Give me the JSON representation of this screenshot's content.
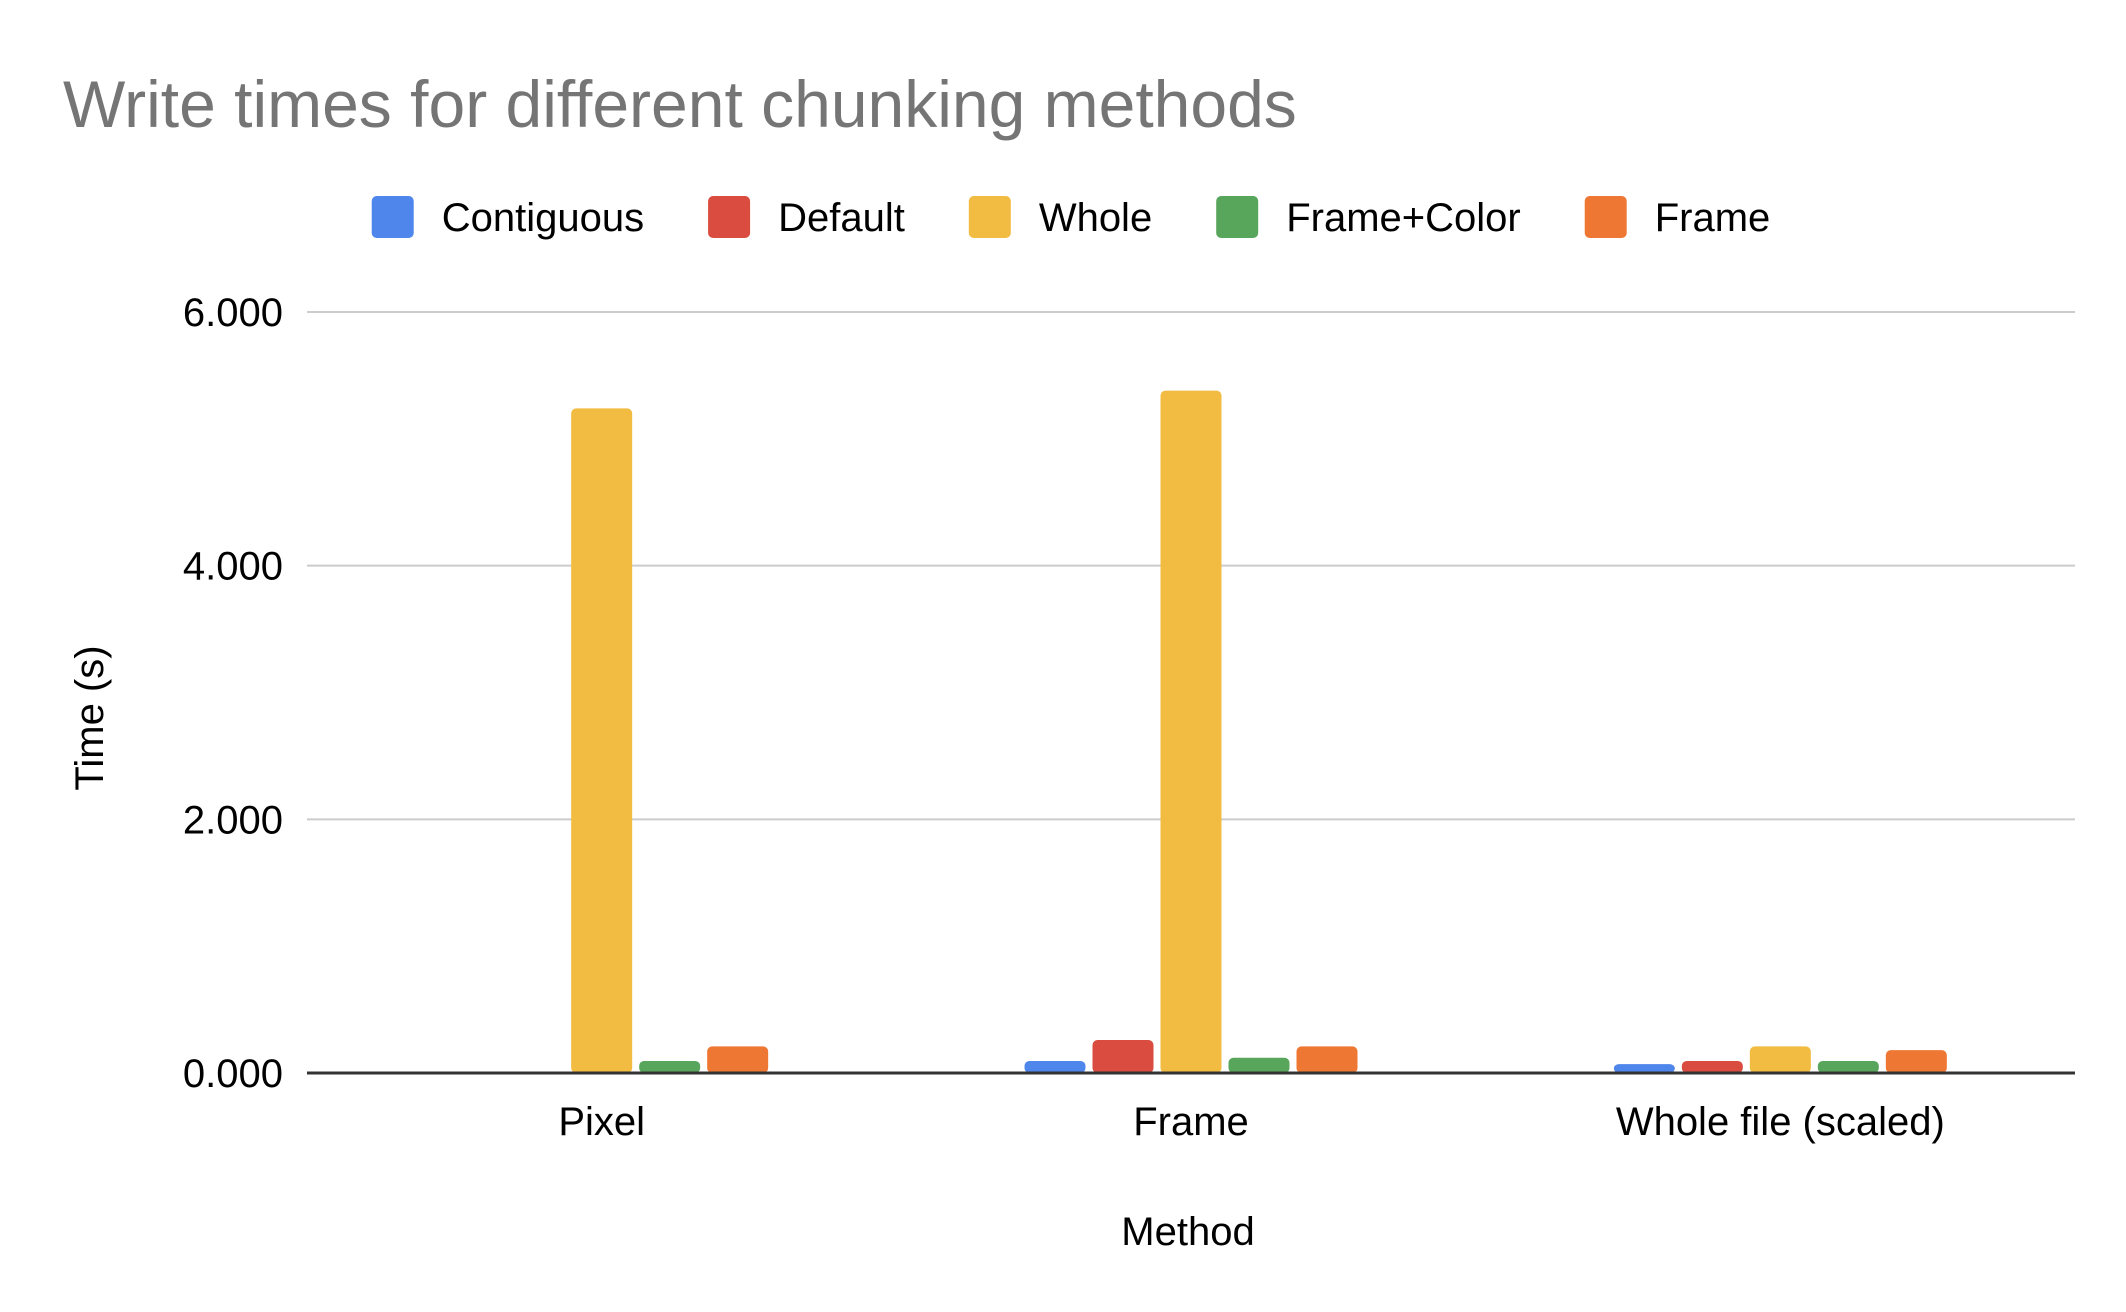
{
  "chart_data": {
    "type": "bar",
    "title": "Write times for different chunking methods",
    "xlabel": "Method",
    "ylabel": "Time (s)",
    "categories": [
      "Pixel",
      "Frame",
      "Whole file (scaled)"
    ],
    "series": [
      {
        "name": "Contiguous",
        "color": "#4e86ec",
        "values": [
          0,
          0.095,
          0.07
        ]
      },
      {
        "name": "Default",
        "color": "#d94c3f",
        "values": [
          0,
          0.26,
          0.095
        ]
      },
      {
        "name": "Whole",
        "color": "#f2bc42",
        "values": [
          5.24,
          5.38,
          0.21
        ]
      },
      {
        "name": "Frame+Color",
        "color": "#58a55c",
        "values": [
          0.095,
          0.12,
          0.095
        ]
      },
      {
        "name": "Frame",
        "color": "#ee7733",
        "values": [
          0.21,
          0.21,
          0.18
        ]
      }
    ],
    "ylim": [
      0,
      6
    ],
    "yticks": [
      0,
      2,
      4,
      6
    ],
    "ytick_labels": [
      "0.000",
      "2.000",
      "4.000",
      "6.000"
    ],
    "grid": true,
    "legend_position": "top"
  },
  "colors": {
    "title": "#757575",
    "text": "#000000",
    "grid": "#cccccc",
    "axis": "#333333"
  }
}
